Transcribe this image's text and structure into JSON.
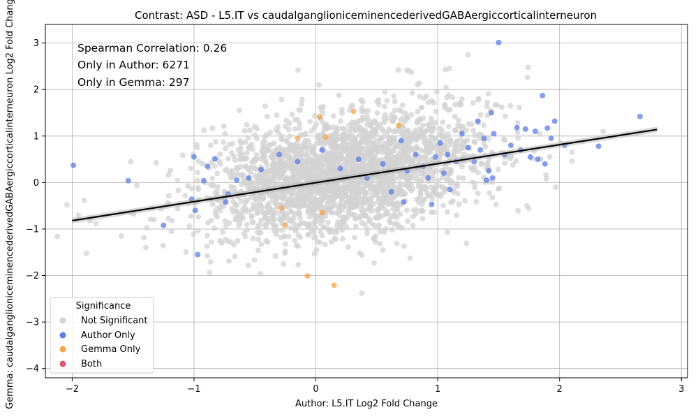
{
  "chart_data": {
    "type": "scatter",
    "title": "Contrast: ASD - L5.IT vs caudalganglioniceminencederivedGABAergiccorticalinterneuron",
    "xlabel": "Author: L5.IT Log2 Fold Change",
    "ylabel": "Gemma: caudalganglioniceminencederivedGABAergiccorticalinterneuron Log2 Fold Change",
    "xlim": [
      -2.22,
      3.05
    ],
    "ylim": [
      -4.2,
      3.4
    ],
    "x_ticks": [
      -2,
      -1,
      0,
      1,
      2,
      3
    ],
    "y_ticks": [
      -4,
      -3,
      -2,
      -1,
      0,
      1,
      2,
      3
    ],
    "grid": true,
    "annotations": [
      "Spearman Correlation: 0.26",
      "Only in Author: 6271",
      "Only in Gemma: 297"
    ],
    "legend": {
      "title": "Significance",
      "placement": "lower-left",
      "entries": [
        {
          "label": "Not Significant",
          "color": "#d3d3d3"
        },
        {
          "label": "Author Only",
          "color": "#5b7ee6"
        },
        {
          "label": "Gemma Only",
          "color": "#f5a64a"
        },
        {
          "label": "Both",
          "color": "#e0566a"
        }
      ]
    },
    "regression_line": {
      "x": [
        -2.0,
        2.8
      ],
      "y": [
        -0.82,
        1.14
      ],
      "color": "#000000"
    },
    "series": [
      {
        "name": "Author Only",
        "color": "#5b7ee6",
        "points": [
          [
            -1.99,
            0.37
          ],
          [
            -1.54,
            0.04
          ],
          [
            -1.25,
            -0.92
          ],
          [
            -1.02,
            -0.36
          ],
          [
            -1.0,
            0.55
          ],
          [
            -0.99,
            -0.6
          ],
          [
            -0.97,
            -1.55
          ],
          [
            -0.92,
            0.04
          ],
          [
            -0.89,
            0.35
          ],
          [
            -0.83,
            0.51
          ],
          [
            -0.74,
            -0.42
          ],
          [
            -0.72,
            -0.25
          ],
          [
            -0.65,
            0.05
          ],
          [
            -0.55,
            0.1
          ],
          [
            -0.45,
            0.28
          ],
          [
            -0.3,
            0.6
          ],
          [
            -0.15,
            0.45
          ],
          [
            0.05,
            0.7
          ],
          [
            0.2,
            0.3
          ],
          [
            0.35,
            0.5
          ],
          [
            0.42,
            0.1
          ],
          [
            0.55,
            0.4
          ],
          [
            0.62,
            -0.2
          ],
          [
            0.7,
            0.9
          ],
          [
            0.72,
            -0.42
          ],
          [
            0.75,
            0.25
          ],
          [
            0.82,
            0.6
          ],
          [
            0.88,
            0.35
          ],
          [
            0.92,
            0.1
          ],
          [
            0.95,
            -0.47
          ],
          [
            0.98,
            0.55
          ],
          [
            1.02,
            0.85
          ],
          [
            1.05,
            0.2
          ],
          [
            1.08,
            0.6
          ],
          [
            1.1,
            -0.15
          ],
          [
            1.15,
            0.45
          ],
          [
            1.2,
            1.05
          ],
          [
            1.25,
            0.75
          ],
          [
            1.3,
            0.45
          ],
          [
            1.33,
            1.32
          ],
          [
            1.35,
            0.7
          ],
          [
            1.38,
            0.95
          ],
          [
            1.4,
            0.05
          ],
          [
            1.42,
            0.25
          ],
          [
            1.44,
            1.5
          ],
          [
            1.45,
            0.1
          ],
          [
            1.46,
            1.05
          ],
          [
            1.5,
            3.01
          ],
          [
            1.55,
            0.6
          ],
          [
            1.6,
            0.8
          ],
          [
            1.65,
            1.18
          ],
          [
            1.68,
            0.7
          ],
          [
            1.72,
            1.15
          ],
          [
            1.76,
            0.55
          ],
          [
            1.8,
            1.1
          ],
          [
            1.82,
            0.5
          ],
          [
            1.86,
            1.87
          ],
          [
            1.88,
            0.4
          ],
          [
            1.9,
            1.17
          ],
          [
            1.93,
            0.95
          ],
          [
            1.96,
            1.32
          ],
          [
            2.04,
            0.8
          ],
          [
            2.32,
            0.78
          ],
          [
            2.66,
            1.42
          ]
        ]
      },
      {
        "name": "Gemma Only",
        "color": "#f5a64a",
        "points": [
          [
            0.03,
            1.41
          ],
          [
            0.31,
            1.53
          ],
          [
            0.68,
            1.23
          ],
          [
            -0.25,
            -0.92
          ],
          [
            -0.07,
            -2.01
          ],
          [
            0.15,
            -2.21
          ],
          [
            -0.28,
            -0.55
          ],
          [
            0.05,
            -0.65
          ],
          [
            -0.15,
            0.95
          ],
          [
            0.08,
            0.98
          ]
        ]
      },
      {
        "name": "Both",
        "color": "#e0566a",
        "points": []
      }
    ]
  }
}
